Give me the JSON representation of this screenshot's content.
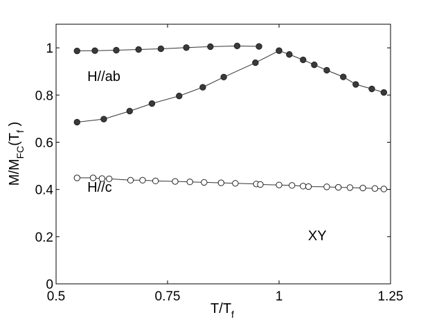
{
  "chart_data": {
    "type": "line",
    "xlabel": {
      "main": "T/T",
      "sub": "f"
    },
    "ylabel": {
      "main": "M/M",
      "sub1": "FC",
      "mid": "(T",
      "sub2": "f",
      "end": " )"
    },
    "xlim": [
      0.5,
      1.25
    ],
    "ylim": [
      0,
      1.1
    ],
    "xticks": [
      0.5,
      0.75,
      1,
      1.25
    ],
    "xtick_labels": [
      "0.5",
      "0.75",
      "1",
      "1.25"
    ],
    "yticks": [
      0,
      0.2,
      0.4,
      0.6,
      0.8,
      1
    ],
    "ytick_labels": [
      "0",
      "0.2",
      "0.4",
      "0.6",
      "0.8",
      "1"
    ],
    "grid": false,
    "annotations": [
      {
        "text": "H//ab",
        "x": 0.57,
        "y": 0.86
      },
      {
        "text": "H//c",
        "x": 0.57,
        "y": 0.39
      },
      {
        "text": "XY",
        "x": 1.065,
        "y": 0.185
      }
    ],
    "series": [
      {
        "marker": "filled",
        "color": "#333333",
        "x": [
          0.547,
          0.587,
          0.635,
          0.685,
          0.735,
          0.792,
          0.846,
          0.906,
          0.955
        ],
        "y": [
          0.987,
          0.988,
          0.99,
          0.993,
          0.996,
          1.001,
          1.005,
          1.008,
          1.006
        ]
      },
      {
        "marker": "filled",
        "color": "#333333",
        "x": [
          0.547,
          0.607,
          0.665,
          0.715,
          0.776,
          0.829,
          0.876,
          0.947,
          1.0
        ],
        "y": [
          0.685,
          0.698,
          0.732,
          0.764,
          0.796,
          0.833,
          0.876,
          0.937,
          0.988
        ]
      },
      {
        "marker": "filled",
        "color": "#333333",
        "x": [
          1.0,
          1.023,
          1.054,
          1.079,
          1.107,
          1.144,
          1.172,
          1.208,
          1.235
        ],
        "y": [
          0.988,
          0.972,
          0.949,
          0.928,
          0.905,
          0.877,
          0.845,
          0.826,
          0.811
        ]
      },
      {
        "marker": "open",
        "color": "#333333",
        "x": [
          0.547,
          0.583,
          0.603,
          0.619,
          0.667,
          0.694,
          0.723,
          0.767,
          0.8,
          0.832,
          0.87,
          0.902,
          0.949,
          0.958,
          1.0,
          1.029,
          1.054,
          1.066,
          1.107,
          1.133,
          1.159,
          1.188,
          1.215,
          1.235
        ],
        "y": [
          0.449,
          0.449,
          0.446,
          0.445,
          0.439,
          0.439,
          0.436,
          0.434,
          0.432,
          0.43,
          0.428,
          0.426,
          0.423,
          0.421,
          0.419,
          0.417,
          0.414,
          0.412,
          0.411,
          0.409,
          0.408,
          0.406,
          0.404,
          0.402
        ]
      }
    ]
  }
}
